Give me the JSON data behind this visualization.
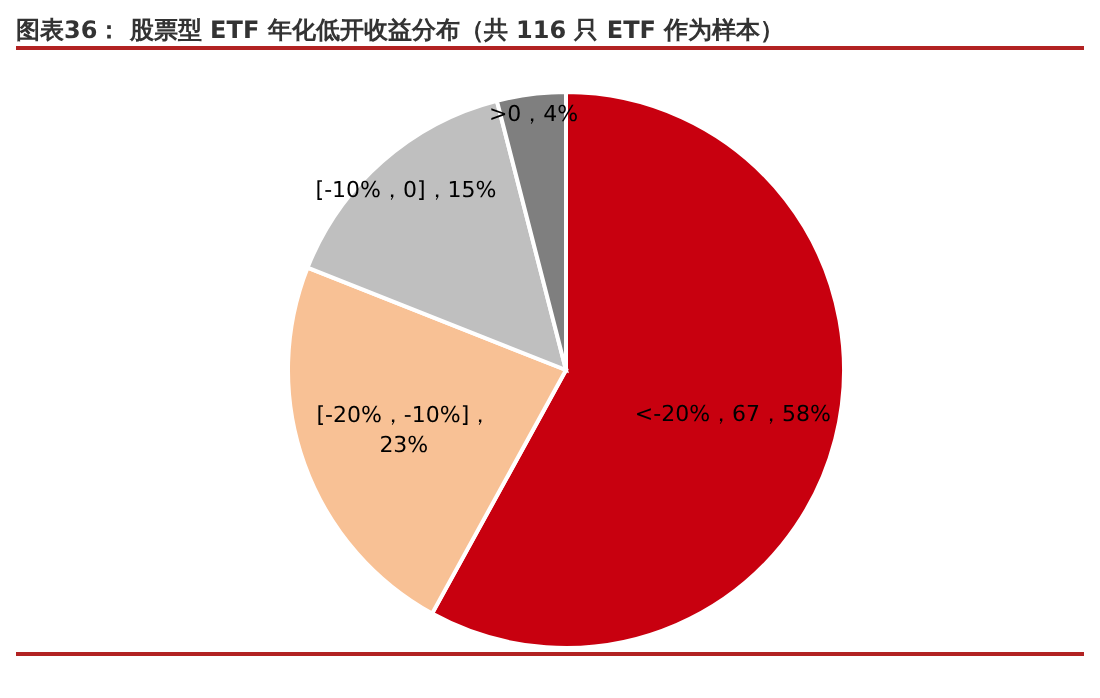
{
  "chart_data": {
    "type": "pie",
    "title": "图表36： 股票型 ETF 年化低开收益分布（共 116 只 ETF 作为样本）",
    "categories": [
      "<-20%",
      "[-20%，-10%]",
      "[-10%，0]",
      ">0"
    ],
    "values": [
      58,
      23,
      15,
      4
    ],
    "value_labels": [
      "，67，58%",
      "，23%",
      "，15%",
      "，4%"
    ],
    "colors": [
      "#c8000f",
      "#f8c195",
      "#bfbfbf",
      "#7f7f7f"
    ],
    "legend": false
  }
}
